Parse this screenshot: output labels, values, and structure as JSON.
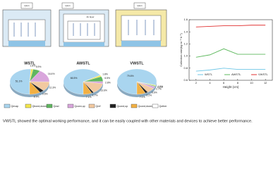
{
  "diagrams": {
    "labels": [
      "Qsun",
      "Qsun",
      "Air layer",
      "Qsun"
    ]
  },
  "legend": {
    "labels": [
      "Qevap",
      "Qbond,down",
      "Qrad",
      "Qconv,up",
      "Qref",
      "Qcond,up",
      "Qcond,down",
      "Qother"
    ],
    "colors": [
      "#a9d5ef",
      "#f3e64c",
      "#5fb65f",
      "#d9a6dc",
      "#f2c9a0",
      "#222222",
      "#f2b043",
      "#ffffff"
    ]
  },
  "chart_data": [
    {
      "type": "pie",
      "title": "WSTL",
      "values": [
        51.1,
        1.8,
        5.9,
        16.4,
        12.3,
        3.6,
        8.9
      ],
      "value_labels": [
        "51.1%",
        "1.8%",
        "5.9%",
        "16.4%",
        "12.3%",
        "3.6%",
        "8.9%"
      ]
    },
    {
      "type": "pie",
      "title": "AWSTL",
      "values": [
        66.5,
        1.8,
        6.5,
        2.8,
        13.6,
        1.7,
        7.1
      ],
      "value_labels": [
        "66.5%",
        "1.8%",
        "6.5%",
        "2.8%",
        "13.6%",
        "1.7%",
        "7.1%"
      ]
    },
    {
      "type": "pie",
      "title": "VWSTL",
      "values": [
        79.6,
        1.0,
        1.0,
        2.7,
        6.6,
        2.2,
        7.1
      ],
      "value_labels": [
        "79.6%",
        "1.0%",
        "1.0%",
        "2.7%",
        "6.6%",
        "2.2%",
        "7.1%"
      ]
    },
    {
      "type": "line",
      "x_label": "Height (cm)",
      "y_label": "Collection rate(kg·m⁻²·h⁻¹)",
      "x": [
        2,
        4,
        6,
        8,
        10,
        12
      ],
      "xlim": [
        1,
        13
      ],
      "xticks": [
        2,
        4,
        6,
        8,
        10,
        12
      ],
      "ylim": [
        0.6,
        1.6
      ],
      "yticks": [
        0.6,
        {
          "value": 0.8,
          "label": "0.8"
        },
        {
          "value": 1.0,
          "label": "1.0"
        },
        1.2,
        1.4,
        1.6
      ],
      "series": [
        {
          "name": "WSTL",
          "color": "#6ec6e6",
          "values": [
            0.75,
            0.77,
            0.8,
            0.78,
            0.78,
            0.78
          ]
        },
        {
          "name": "AWSTL",
          "color": "#5cb85c",
          "values": [
            0.98,
            1.02,
            1.12,
            1.03,
            1.03,
            1.03
          ]
        },
        {
          "name": "VWSTL",
          "color": "#e03030",
          "values": [
            1.48,
            1.49,
            1.5,
            1.5,
            1.51,
            1.51
          ]
        }
      ]
    }
  ],
  "caption": "VWSTL showed the optimal working performance, and it can be easily coupled with other materials and devices to achieve better performance."
}
